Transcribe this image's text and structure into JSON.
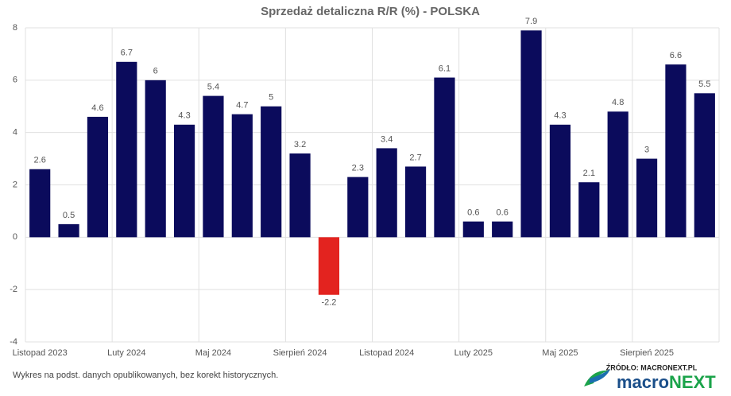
{
  "chart_data": {
    "type": "bar",
    "title": "Sprzedaż detaliczna R/R (%) - POLSKA",
    "categories": [
      "Listopad 2023",
      null,
      null,
      "Luty 2024",
      null,
      null,
      "Maj 2024",
      null,
      null,
      "Sierpień 2024",
      null,
      null,
      "Listopad 2024",
      null,
      null,
      "Luty 2025",
      null,
      null,
      "Maj 2025",
      null,
      null,
      "Sierpień 2025",
      null,
      null
    ],
    "values": [
      2.6,
      0.5,
      4.6,
      6.7,
      6,
      4.3,
      5.4,
      4.7,
      5,
      3.2,
      -2.2,
      2.3,
      3.4,
      2.7,
      6.1,
      0.6,
      0.6,
      7.9,
      4.3,
      2.1,
      4.8,
      3,
      6.6,
      5.5
    ],
    "color": "#0b0b5c",
    "negative_color": "#e3231f",
    "ylim": [
      -4,
      8
    ],
    "yticks": [
      -4,
      -2,
      0,
      2,
      4,
      6,
      8
    ],
    "grid": true,
    "note": "Wykres na podst. danych opublikowanych, bez korekt historycznych.",
    "source": "ŹRÓDŁO: MACRONEXT.PL",
    "logo": [
      "macro",
      "NEXT"
    ]
  }
}
